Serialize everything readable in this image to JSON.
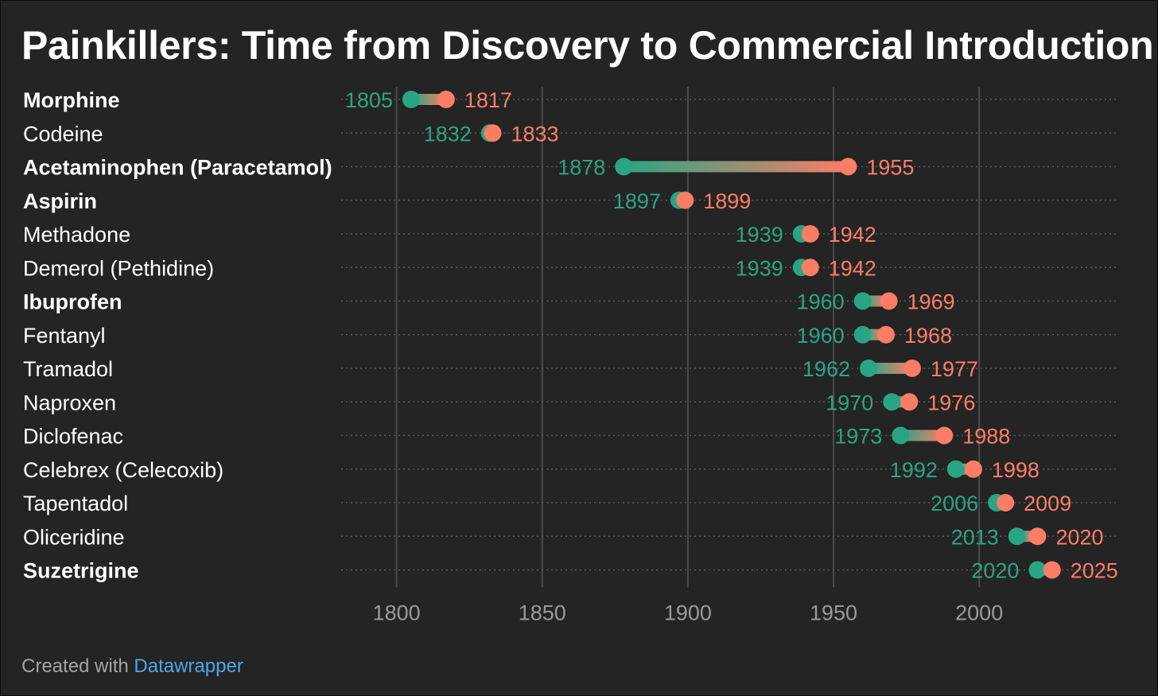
{
  "colors": {
    "discovery": "#2aa584",
    "introduction": "#fb7d66",
    "label": "#ffffff",
    "axis": "#9a9a9a",
    "grid": "#4b4b4b"
  },
  "footer": {
    "prefix": "Created with",
    "link": "Datawrapper"
  },
  "chart_data": {
    "type": "range-dot",
    "title": "Painkillers: Time from Discovery to Commercial Introduction",
    "xlim": [
      1781,
      2048
    ],
    "xticks": [
      1800,
      1850,
      1900,
      1950,
      2000
    ],
    "grid": true,
    "items": [
      {
        "name": "Morphine",
        "bold": true,
        "discovery": 1805,
        "introduction": 1817
      },
      {
        "name": "Codeine",
        "bold": false,
        "discovery": 1832,
        "introduction": 1833
      },
      {
        "name": "Acetaminophen (Paracetamol)",
        "bold": true,
        "discovery": 1878,
        "introduction": 1955
      },
      {
        "name": "Aspirin",
        "bold": true,
        "discovery": 1897,
        "introduction": 1899
      },
      {
        "name": "Methadone",
        "bold": false,
        "discovery": 1939,
        "introduction": 1942
      },
      {
        "name": "Demerol (Pethidine)",
        "bold": false,
        "discovery": 1939,
        "introduction": 1942
      },
      {
        "name": "Ibuprofen",
        "bold": true,
        "discovery": 1960,
        "introduction": 1969
      },
      {
        "name": "Fentanyl",
        "bold": false,
        "discovery": 1960,
        "introduction": 1968
      },
      {
        "name": "Tramadol",
        "bold": false,
        "discovery": 1962,
        "introduction": 1977
      },
      {
        "name": "Naproxen",
        "bold": false,
        "discovery": 1970,
        "introduction": 1976
      },
      {
        "name": "Diclofenac",
        "bold": false,
        "discovery": 1973,
        "introduction": 1988
      },
      {
        "name": "Celebrex (Celecoxib)",
        "bold": false,
        "discovery": 1992,
        "introduction": 1998
      },
      {
        "name": "Tapentadol",
        "bold": false,
        "discovery": 2006,
        "introduction": 2009
      },
      {
        "name": "Oliceridine",
        "bold": false,
        "discovery": 2013,
        "introduction": 2020
      },
      {
        "name": "Suzetrigine",
        "bold": true,
        "discovery": 2020,
        "introduction": 2025
      }
    ]
  }
}
